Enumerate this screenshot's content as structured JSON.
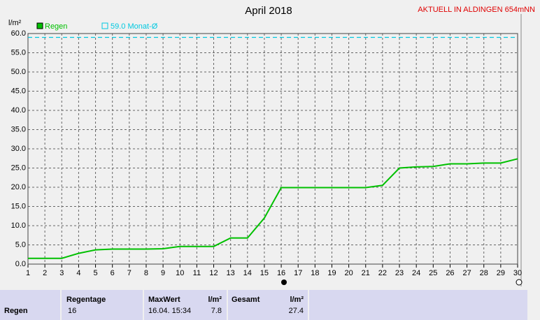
{
  "chart_data": {
    "type": "line",
    "title": "April 2018",
    "annotation": "AKTUELL IN ALDINGEN 654mNN",
    "ylabel": "l/m²",
    "x": [
      1,
      2,
      3,
      4,
      5,
      6,
      7,
      8,
      9,
      10,
      11,
      12,
      13,
      14,
      15,
      16,
      17,
      18,
      19,
      20,
      21,
      22,
      23,
      24,
      25,
      26,
      27,
      28,
      29,
      30
    ],
    "series": [
      {
        "name": "Regen",
        "color": "#00c000",
        "values": [
          1.5,
          1.5,
          1.5,
          2.8,
          3.7,
          3.9,
          3.9,
          3.9,
          4.0,
          4.6,
          4.6,
          4.6,
          6.8,
          6.8,
          12.0,
          19.9,
          19.9,
          19.9,
          19.9,
          19.9,
          19.9,
          20.5,
          25.0,
          25.3,
          25.4,
          26.1,
          26.1,
          26.3,
          26.3,
          27.4
        ]
      }
    ],
    "reference": {
      "label": "59.0 Monat-Ø",
      "value": 59,
      "color": "#00c8e0"
    },
    "xlim": [
      1,
      30
    ],
    "xticks": [
      1,
      2,
      3,
      4,
      5,
      6,
      7,
      8,
      9,
      10,
      11,
      12,
      13,
      14,
      15,
      16,
      17,
      18,
      19,
      20,
      21,
      22,
      23,
      24,
      25,
      26,
      27,
      28,
      29,
      30
    ],
    "ylim": [
      0,
      60
    ],
    "yticks": [
      {
        "value": 0,
        "label": "0.0"
      },
      {
        "value": 5,
        "label": "5.0"
      },
      {
        "value": 10,
        "label": "10.0"
      },
      {
        "value": 15,
        "label": "15.0"
      },
      {
        "value": 20,
        "label": "20.0"
      },
      {
        "value": 25,
        "label": "25.0"
      },
      {
        "value": 30,
        "label": "30.0"
      },
      {
        "value": 35,
        "label": "35.0"
      },
      {
        "value": 40,
        "label": "40.0"
      },
      {
        "value": 45,
        "label": "45.0"
      },
      {
        "value": 50,
        "label": "50.0"
      },
      {
        "value": 55,
        "label": "55.0"
      },
      {
        "value": 60,
        "label": "60.0"
      }
    ],
    "grid": true
  },
  "summary": {
    "row_label": "Regen",
    "regentage": {
      "header": "Regentage",
      "value": "16"
    },
    "maxwert": {
      "header": "MaxWert",
      "unit": "l/m²",
      "date": "16.04. 15:34",
      "value": "7.8"
    },
    "gesamt": {
      "header": "Gesamt",
      "unit": "l/m²",
      "value": "27.4"
    }
  }
}
